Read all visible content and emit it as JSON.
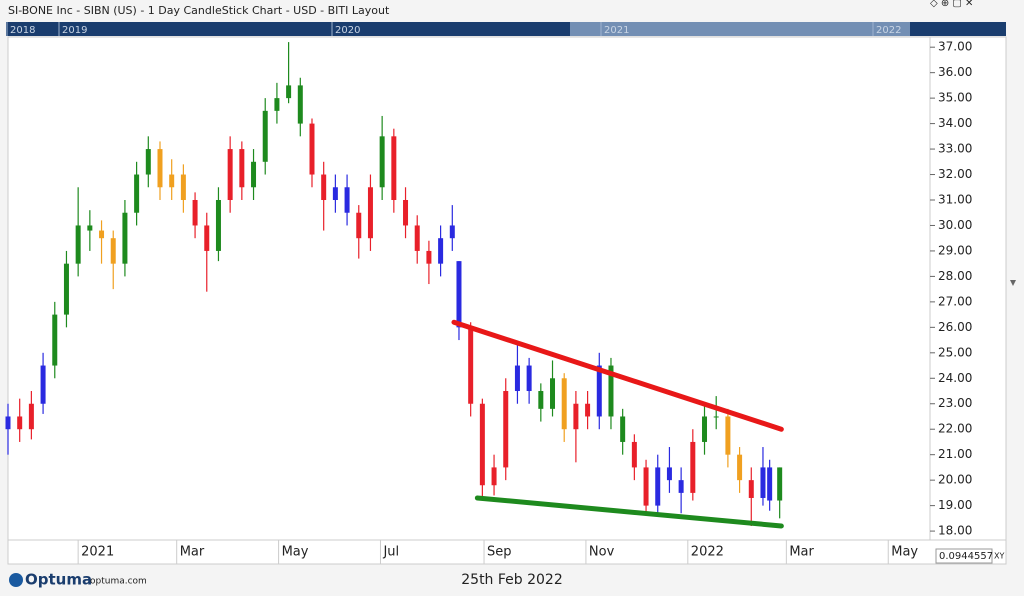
{
  "chart_data": {
    "type": "candlestick",
    "title": "SI-BONE Inc - SIBN (US) - 1 Day CandleStick Chart - USD - BITI Layout",
    "navigator_labels": [
      "2018",
      "2019",
      "2020",
      "2021",
      "2022"
    ],
    "xlim": [
      -42,
      510
    ],
    "xticks": [
      {
        "value": 0,
        "label": "2021"
      },
      {
        "value": 59,
        "label": "Mar"
      },
      {
        "value": 120,
        "label": "May"
      },
      {
        "value": 181,
        "label": "Jul"
      },
      {
        "value": 243,
        "label": "Sep"
      },
      {
        "value": 304,
        "label": "Nov"
      },
      {
        "value": 365,
        "label": "2022"
      },
      {
        "value": 424,
        "label": "Mar"
      },
      {
        "value": 485,
        "label": "May"
      }
    ],
    "ylim": [
      17.65,
      37.4
    ],
    "yticks": [
      {
        "value": 18,
        "label": "18.00"
      },
      {
        "value": 19,
        "label": "19.00"
      },
      {
        "value": 20,
        "label": "20.00"
      },
      {
        "value": 21,
        "label": "21.00"
      },
      {
        "value": 22,
        "label": "22.00"
      },
      {
        "value": 23,
        "label": "23.00"
      },
      {
        "value": 24,
        "label": "24.00"
      },
      {
        "value": 25,
        "label": "25.00"
      },
      {
        "value": 26,
        "label": "26.00"
      },
      {
        "value": 27,
        "label": "27.00"
      },
      {
        "value": 28,
        "label": "28.00"
      },
      {
        "value": 29,
        "label": "29.00"
      },
      {
        "value": 30,
        "label": "30.00"
      },
      {
        "value": 31,
        "label": "31.00"
      },
      {
        "value": 32,
        "label": "32.00"
      },
      {
        "value": 33,
        "label": "33.00"
      },
      {
        "value": 34,
        "label": "34.00"
      },
      {
        "value": 35,
        "label": "35.00"
      },
      {
        "value": 36,
        "label": "36.00"
      },
      {
        "value": 37,
        "label": "37.00"
      }
    ],
    "candles": [
      {
        "x": -42,
        "open": 22.0,
        "high": 23.0,
        "low": 21.0,
        "close": 22.5,
        "color": "#2a2ae0"
      },
      {
        "x": -35,
        "open": 22.5,
        "high": 23.2,
        "low": 21.5,
        "close": 22.0,
        "color": "#e8202a"
      },
      {
        "x": -28,
        "open": 22.0,
        "high": 23.5,
        "low": 21.6,
        "close": 23.0,
        "color": "#e8202a"
      },
      {
        "x": -21,
        "open": 23.0,
        "high": 25.0,
        "low": 22.6,
        "close": 24.5,
        "color": "#2a2ae0"
      },
      {
        "x": -14,
        "open": 24.5,
        "high": 27.0,
        "low": 24.0,
        "close": 26.5,
        "color": "#1e8a1e"
      },
      {
        "x": -7,
        "open": 26.5,
        "high": 29.0,
        "low": 26.0,
        "close": 28.5,
        "color": "#1e8a1e"
      },
      {
        "x": 0,
        "open": 28.5,
        "high": 31.5,
        "low": 28.0,
        "close": 30.0,
        "color": "#1e8a1e"
      },
      {
        "x": 7,
        "open": 30.0,
        "high": 30.6,
        "low": 29.0,
        "close": 29.8,
        "color": "#1e8a1e"
      },
      {
        "x": 14,
        "open": 29.8,
        "high": 30.2,
        "low": 28.5,
        "close": 29.5,
        "color": "#f0a020"
      },
      {
        "x": 21,
        "open": 29.5,
        "high": 29.8,
        "low": 27.5,
        "close": 28.5,
        "color": "#f0a020"
      },
      {
        "x": 28,
        "open": 28.5,
        "high": 31.0,
        "low": 28.0,
        "close": 30.5,
        "color": "#1e8a1e"
      },
      {
        "x": 35,
        "open": 30.5,
        "high": 32.5,
        "low": 30.0,
        "close": 32.0,
        "color": "#1e8a1e"
      },
      {
        "x": 42,
        "open": 32.0,
        "high": 33.5,
        "low": 31.5,
        "close": 33.0,
        "color": "#1e8a1e"
      },
      {
        "x": 49,
        "open": 33.0,
        "high": 33.3,
        "low": 31.0,
        "close": 31.5,
        "color": "#f0a020"
      },
      {
        "x": 56,
        "open": 31.5,
        "high": 32.6,
        "low": 31.0,
        "close": 32.0,
        "color": "#f0a020"
      },
      {
        "x": 63,
        "open": 32.0,
        "high": 32.4,
        "low": 30.5,
        "close": 31.0,
        "color": "#f0a020"
      },
      {
        "x": 70,
        "open": 31.0,
        "high": 31.3,
        "low": 29.5,
        "close": 30.0,
        "color": "#e8202a"
      },
      {
        "x": 77,
        "open": 30.0,
        "high": 30.5,
        "low": 27.4,
        "close": 29.0,
        "color": "#e8202a"
      },
      {
        "x": 84,
        "open": 29.0,
        "high": 31.5,
        "low": 28.6,
        "close": 31.0,
        "color": "#1e8a1e"
      },
      {
        "x": 91,
        "open": 31.0,
        "high": 33.5,
        "low": 30.5,
        "close": 33.0,
        "color": "#e8202a"
      },
      {
        "x": 98,
        "open": 33.0,
        "high": 33.3,
        "low": 31.0,
        "close": 31.5,
        "color": "#e8202a"
      },
      {
        "x": 105,
        "open": 31.5,
        "high": 33.0,
        "low": 31.0,
        "close": 32.5,
        "color": "#1e8a1e"
      },
      {
        "x": 112,
        "open": 32.5,
        "high": 35.0,
        "low": 32.0,
        "close": 34.5,
        "color": "#1e8a1e"
      },
      {
        "x": 119,
        "open": 34.5,
        "high": 35.6,
        "low": 34.0,
        "close": 35.0,
        "color": "#1e8a1e"
      },
      {
        "x": 126,
        "open": 35.0,
        "high": 37.2,
        "low": 34.8,
        "close": 35.5,
        "color": "#1e8a1e"
      },
      {
        "x": 133,
        "open": 35.5,
        "high": 35.8,
        "low": 33.5,
        "close": 34.0,
        "color": "#1e8a1e"
      },
      {
        "x": 140,
        "open": 34.0,
        "high": 34.2,
        "low": 31.5,
        "close": 32.0,
        "color": "#e8202a"
      },
      {
        "x": 147,
        "open": 32.0,
        "high": 32.5,
        "low": 29.8,
        "close": 31.0,
        "color": "#e8202a"
      },
      {
        "x": 154,
        "open": 31.0,
        "high": 32.0,
        "low": 30.5,
        "close": 31.5,
        "color": "#2a2ae0"
      },
      {
        "x": 161,
        "open": 31.5,
        "high": 32.0,
        "low": 30.0,
        "close": 30.5,
        "color": "#2a2ae0"
      },
      {
        "x": 168,
        "open": 30.5,
        "high": 30.8,
        "low": 28.7,
        "close": 29.5,
        "color": "#e8202a"
      },
      {
        "x": 175,
        "open": 29.5,
        "high": 32.0,
        "low": 29.0,
        "close": 31.5,
        "color": "#e8202a"
      },
      {
        "x": 182,
        "open": 31.5,
        "high": 34.3,
        "low": 31.0,
        "close": 33.5,
        "color": "#1e8a1e"
      },
      {
        "x": 189,
        "open": 33.5,
        "high": 33.8,
        "low": 30.5,
        "close": 31.0,
        "color": "#e8202a"
      },
      {
        "x": 196,
        "open": 31.0,
        "high": 31.5,
        "low": 29.5,
        "close": 30.0,
        "color": "#e8202a"
      },
      {
        "x": 203,
        "open": 30.0,
        "high": 30.4,
        "low": 28.5,
        "close": 29.0,
        "color": "#e8202a"
      },
      {
        "x": 210,
        "open": 29.0,
        "high": 29.4,
        "low": 27.7,
        "close": 28.5,
        "color": "#e8202a"
      },
      {
        "x": 217,
        "open": 28.5,
        "high": 30.0,
        "low": 28.0,
        "close": 29.5,
        "color": "#2a2ae0"
      },
      {
        "x": 224,
        "open": 29.5,
        "high": 30.8,
        "low": 29.0,
        "close": 30.0,
        "color": "#2a2ae0"
      },
      {
        "x": 228,
        "open": 28.6,
        "high": 28.6,
        "low": 25.5,
        "close": 26.0,
        "color": "#2a2ae0"
      },
      {
        "x": 235,
        "open": 26.0,
        "high": 26.2,
        "low": 22.5,
        "close": 23.0,
        "color": "#e8202a"
      },
      {
        "x": 242,
        "open": 23.0,
        "high": 23.2,
        "low": 19.3,
        "close": 19.8,
        "color": "#e8202a"
      },
      {
        "x": 249,
        "open": 19.8,
        "high": 21.0,
        "low": 19.4,
        "close": 20.5,
        "color": "#e8202a"
      },
      {
        "x": 256,
        "open": 20.5,
        "high": 24.0,
        "low": 20.0,
        "close": 23.5,
        "color": "#e8202a"
      },
      {
        "x": 263,
        "open": 23.5,
        "high": 25.3,
        "low": 23.0,
        "close": 24.5,
        "color": "#2a2ae0"
      },
      {
        "x": 270,
        "open": 24.5,
        "high": 24.8,
        "low": 23.0,
        "close": 23.5,
        "color": "#2a2ae0"
      },
      {
        "x": 277,
        "open": 23.5,
        "high": 23.8,
        "low": 22.3,
        "close": 22.8,
        "color": "#1e8a1e"
      },
      {
        "x": 284,
        "open": 22.8,
        "high": 24.7,
        "low": 22.5,
        "close": 24.0,
        "color": "#1e8a1e"
      },
      {
        "x": 291,
        "open": 24.0,
        "high": 24.2,
        "low": 21.5,
        "close": 22.0,
        "color": "#f0a020"
      },
      {
        "x": 298,
        "open": 22.0,
        "high": 23.5,
        "low": 20.7,
        "close": 23.0,
        "color": "#e8202a"
      },
      {
        "x": 305,
        "open": 23.0,
        "high": 23.5,
        "low": 22.0,
        "close": 22.5,
        "color": "#e8202a"
      },
      {
        "x": 312,
        "open": 22.5,
        "high": 25.0,
        "low": 22.0,
        "close": 24.5,
        "color": "#2a2ae0"
      },
      {
        "x": 319,
        "open": 24.5,
        "high": 24.8,
        "low": 22.0,
        "close": 22.5,
        "color": "#1e8a1e"
      },
      {
        "x": 326,
        "open": 22.5,
        "high": 22.8,
        "low": 21.0,
        "close": 21.5,
        "color": "#1e8a1e"
      },
      {
        "x": 333,
        "open": 21.5,
        "high": 21.8,
        "low": 20.0,
        "close": 20.5,
        "color": "#e8202a"
      },
      {
        "x": 340,
        "open": 20.5,
        "high": 20.8,
        "low": 18.6,
        "close": 19.0,
        "color": "#e8202a"
      },
      {
        "x": 347,
        "open": 19.0,
        "high": 21.0,
        "low": 18.7,
        "close": 20.5,
        "color": "#2a2ae0"
      },
      {
        "x": 354,
        "open": 20.5,
        "high": 21.3,
        "low": 19.5,
        "close": 20.0,
        "color": "#2a2ae0"
      },
      {
        "x": 361,
        "open": 20.0,
        "high": 20.5,
        "low": 18.7,
        "close": 19.5,
        "color": "#2a2ae0"
      },
      {
        "x": 368,
        "open": 19.5,
        "high": 22.0,
        "low": 19.2,
        "close": 21.5,
        "color": "#e8202a"
      },
      {
        "x": 375,
        "open": 21.5,
        "high": 23.0,
        "low": 21.0,
        "close": 22.5,
        "color": "#1e8a1e"
      },
      {
        "x": 382,
        "open": 22.5,
        "high": 23.3,
        "low": 22.0,
        "close": 22.5,
        "color": "#1e8a1e"
      },
      {
        "x": 389,
        "open": 22.5,
        "high": 22.8,
        "low": 20.5,
        "close": 21.0,
        "color": "#f0a020"
      },
      {
        "x": 396,
        "open": 21.0,
        "high": 21.3,
        "low": 19.5,
        "close": 20.0,
        "color": "#f0a020"
      },
      {
        "x": 403,
        "open": 20.0,
        "high": 20.5,
        "low": 18.2,
        "close": 19.3,
        "color": "#e8202a"
      },
      {
        "x": 410,
        "open": 19.3,
        "high": 21.3,
        "low": 19.0,
        "close": 20.5,
        "color": "#2a2ae0"
      },
      {
        "x": 414,
        "open": 20.5,
        "high": 20.8,
        "low": 18.8,
        "close": 19.2,
        "color": "#2a2ae0"
      },
      {
        "x": 420,
        "open": 19.2,
        "high": 20.5,
        "low": 18.5,
        "close": 20.5,
        "color": "#1e8a1e"
      }
    ],
    "trendlines": [
      {
        "x1": 225,
        "y1": 26.2,
        "x2": 421,
        "y2": 22.0,
        "color": "#e81818"
      },
      {
        "x1": 239,
        "y1": 19.3,
        "x2": 421,
        "y2": 18.2,
        "color": "#1e8a1e"
      }
    ],
    "footer": {
      "brand": "Optuma",
      "site": "optuma.com",
      "date": "25th Feb 2022",
      "readout": "0.0944557",
      "mode": "XY"
    }
  }
}
